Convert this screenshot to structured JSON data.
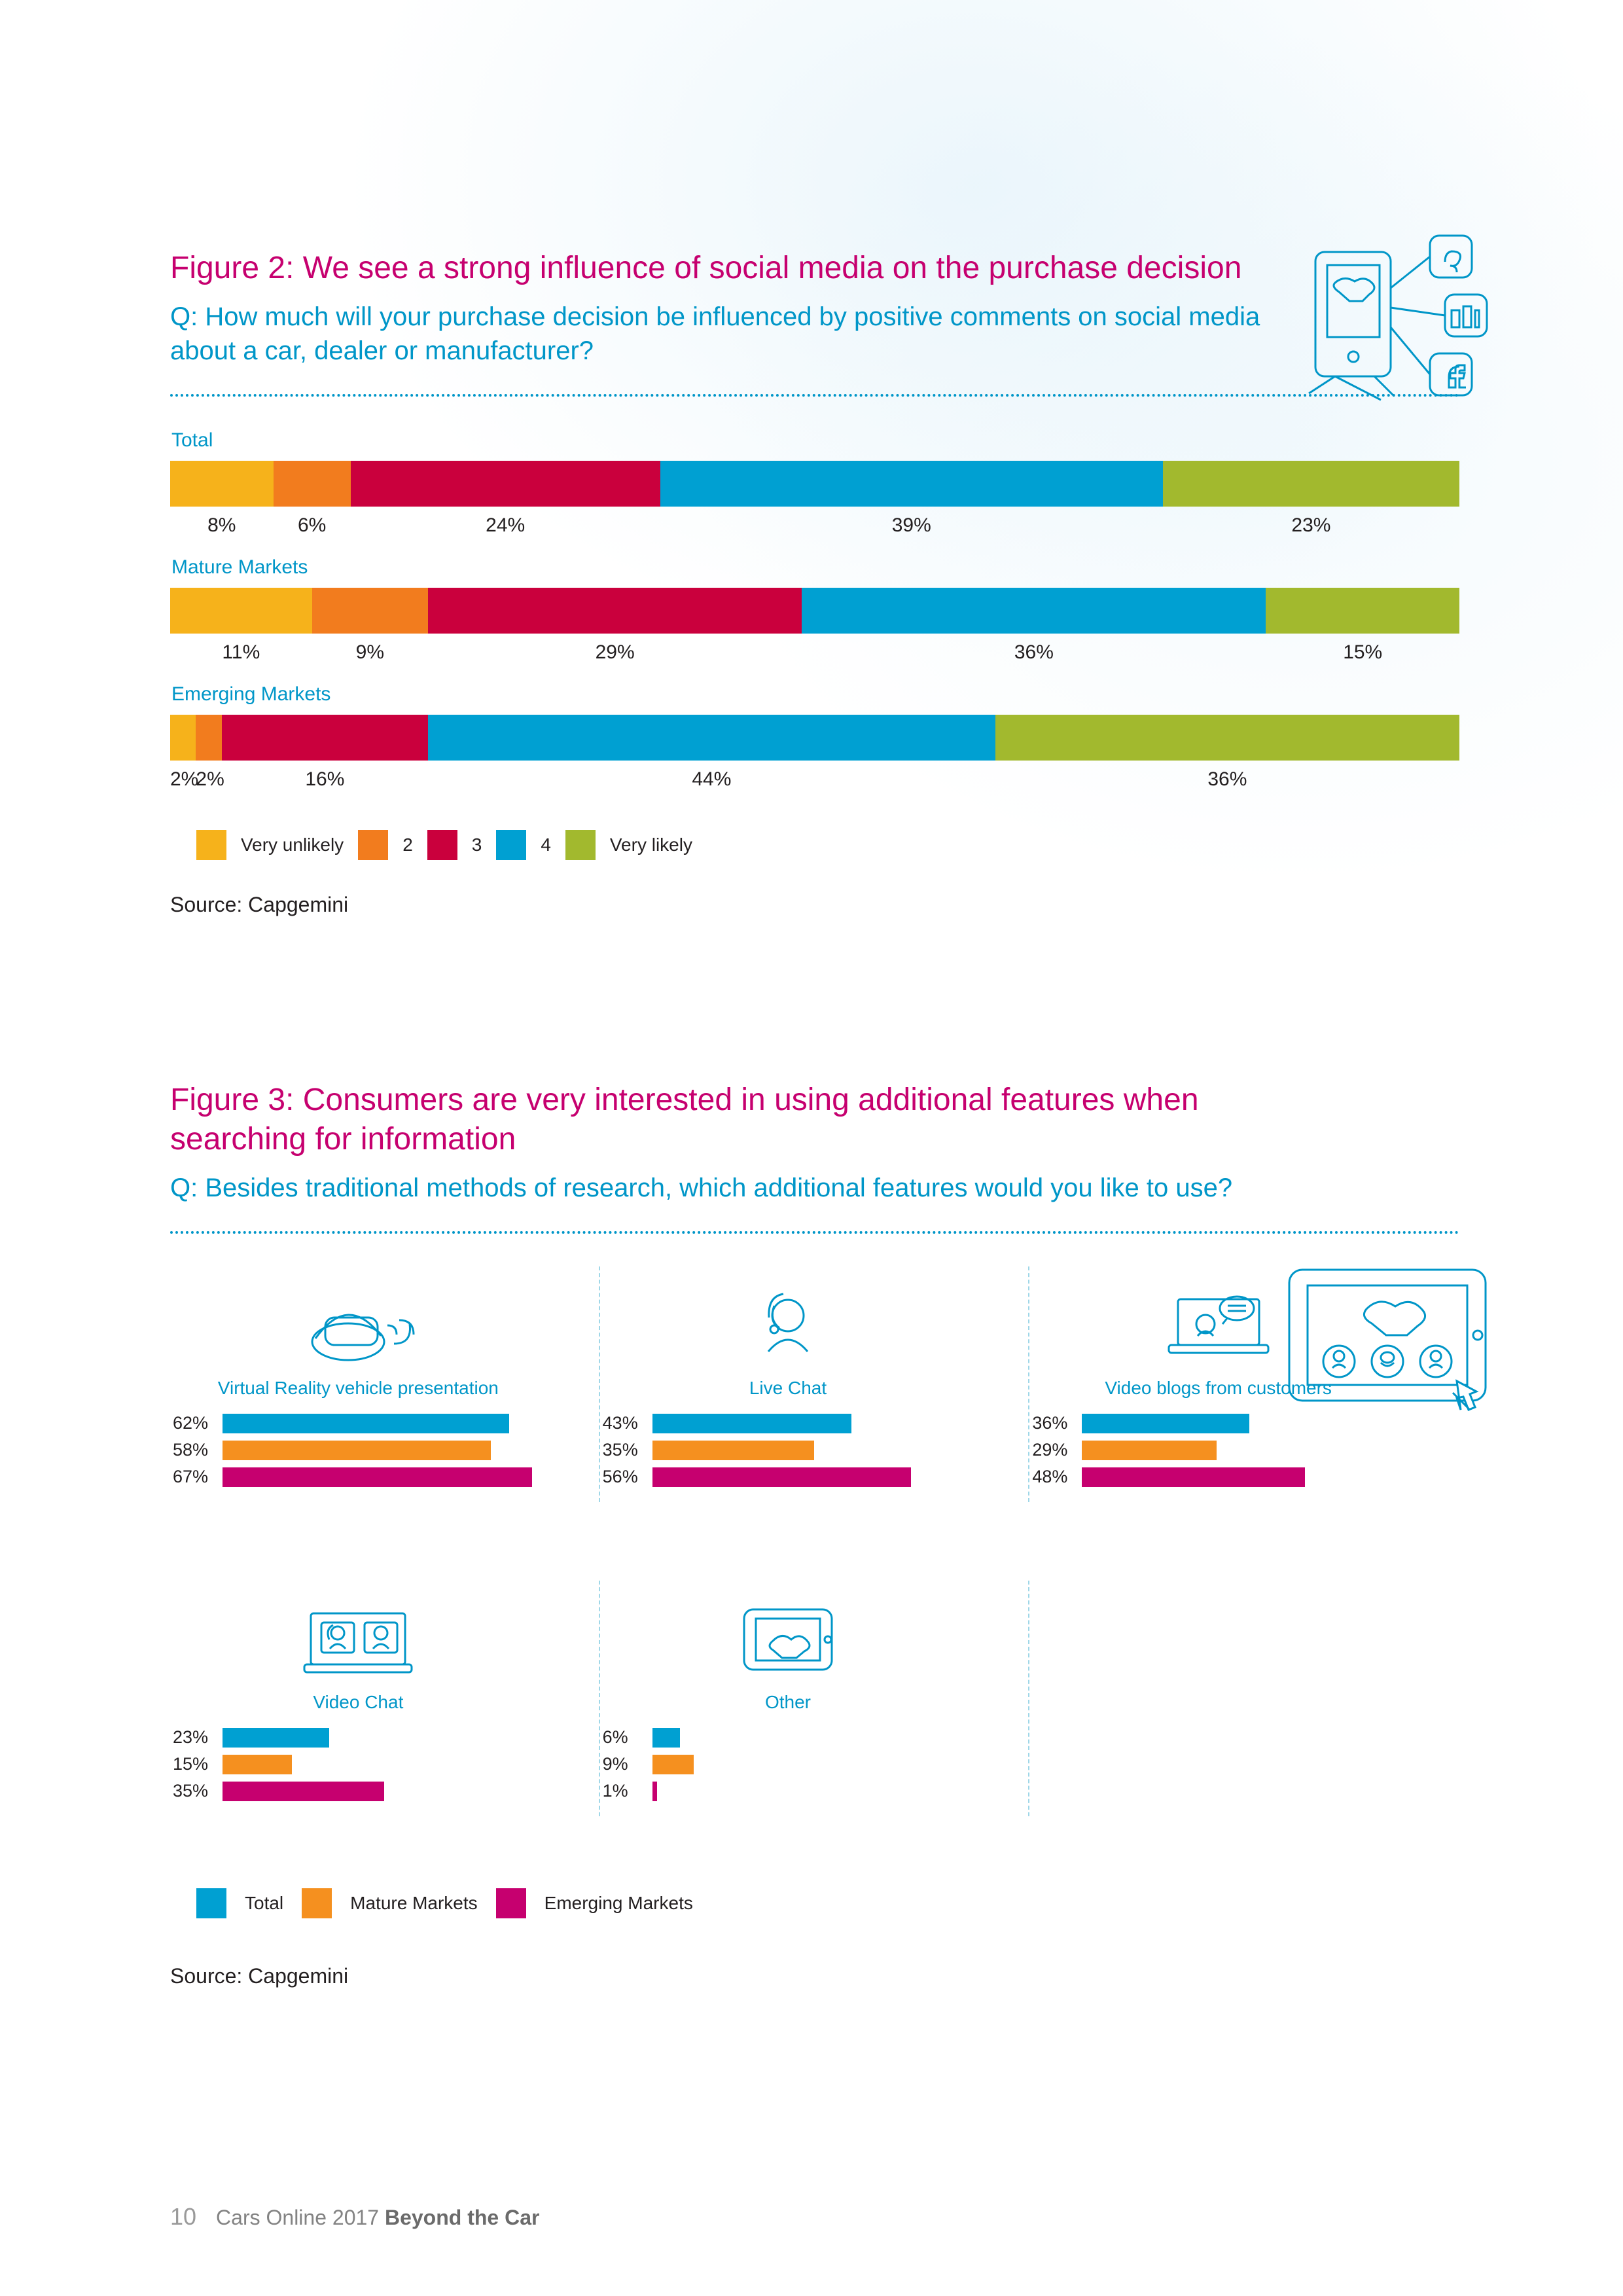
{
  "page": {
    "number": "10",
    "pub_line1": "Cars Online 2017",
    "pub_line2": "Beyond the Car"
  },
  "colors": {
    "very_unlikely": "#f6b21b",
    "scale2": "#f27c1e",
    "scale3": "#ca003d",
    "scale4": "#00a0d2",
    "very_likely": "#a2b92e",
    "total": "#00a0d2",
    "mature": "#f5901f",
    "emerging": "#c6006f",
    "accent_blue": "#0096c8",
    "magenta": "#c6006f",
    "text": "#231f20"
  },
  "figure2": {
    "title": "Figure 2: We see a strong influence of social media on the purchase decision",
    "question": "Q: How much will your purchase decision be influenced by positive comments on social media about a car, dealer or manufacturer?",
    "groups": [
      {
        "label": "Total",
        "values": [
          8,
          6,
          24,
          39,
          23
        ]
      },
      {
        "label": "Mature Markets",
        "values": [
          11,
          9,
          29,
          36,
          15
        ]
      },
      {
        "label": "Emerging Markets",
        "values": [
          2,
          2,
          16,
          44,
          36
        ]
      }
    ],
    "legend": [
      "Very unlikely",
      "2",
      "3",
      "4",
      "Very likely"
    ],
    "source": "Source: Capgemini"
  },
  "figure3": {
    "title": "Figure 3: Consumers are very interested in using additional features when searching for information",
    "question": "Q: Besides traditional methods of research, which additional features would you like to use?",
    "max_pct": 70,
    "features": [
      {
        "name": "Virtual Reality vehicle presentation",
        "total": 62,
        "mature": 58,
        "emerging": 67
      },
      {
        "name": "Live Chat",
        "total": 43,
        "mature": 35,
        "emerging": 56
      },
      {
        "name": "Video blogs from customers",
        "total": 36,
        "mature": 29,
        "emerging": 48
      },
      {
        "name": "Video Chat",
        "total": 23,
        "mature": 15,
        "emerging": 35
      },
      {
        "name": "Other",
        "total": 6,
        "mature": 9,
        "emerging": 1
      }
    ],
    "legend": [
      "Total",
      "Mature Markets",
      "Emerging  Markets"
    ],
    "source": "Source: Capgemini"
  }
}
